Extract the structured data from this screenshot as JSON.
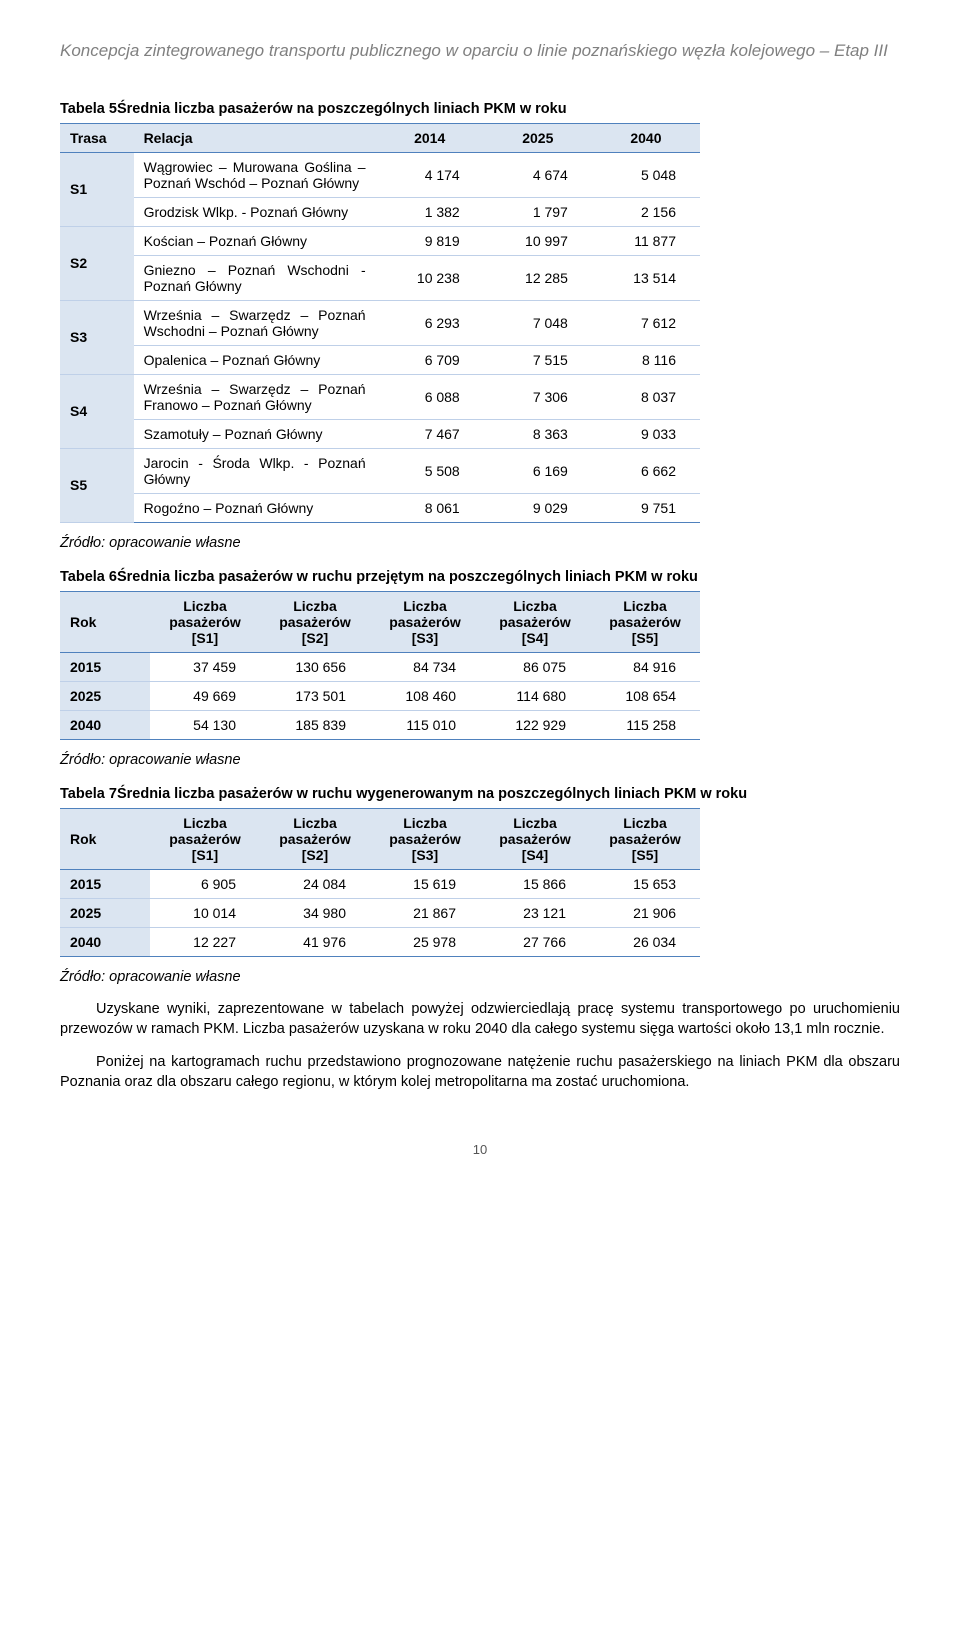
{
  "docTitle": "Koncepcja zintegrowanego transportu publicznego w oparciu o linie poznańskiego węzła kolejowego – Etap III",
  "table5": {
    "caption": "Tabela 5Średnia liczba pasażerów na poszczególnych liniach PKM w roku",
    "head": {
      "c1": "Trasa",
      "c2": "Relacja",
      "c3": "2014",
      "c4": "2025",
      "c5": "2040"
    },
    "groups": [
      {
        "code": "S1",
        "rows": [
          {
            "label": "Wągrowiec – Murowana Goślina – Poznań Wschód – Poznań Główny",
            "v": [
              "4 174",
              "4 674",
              "5 048"
            ]
          },
          {
            "label": "Grodzisk Wlkp. - Poznań Główny",
            "v": [
              "1 382",
              "1 797",
              "2 156"
            ]
          }
        ]
      },
      {
        "code": "S2",
        "rows": [
          {
            "label": "Kościan – Poznań Główny",
            "v": [
              "9 819",
              "10 997",
              "11 877"
            ]
          },
          {
            "label": "Gniezno – Poznań Wschodni - Poznań Główny",
            "v": [
              "10 238",
              "12 285",
              "13 514"
            ]
          }
        ]
      },
      {
        "code": "S3",
        "rows": [
          {
            "label": "Września – Swarzędz – Poznań Wschodni – Poznań Główny",
            "v": [
              "6 293",
              "7 048",
              "7 612"
            ]
          },
          {
            "label": "Opalenica – Poznań Główny",
            "v": [
              "6 709",
              "7 515",
              "8 116"
            ]
          }
        ]
      },
      {
        "code": "S4",
        "rows": [
          {
            "label": "Września – Swarzędz – Poznań Franowo – Poznań Główny",
            "v": [
              "6 088",
              "7 306",
              "8 037"
            ]
          },
          {
            "label": "Szamotuły – Poznań Główny",
            "v": [
              "7 467",
              "8 363",
              "9 033"
            ]
          }
        ]
      },
      {
        "code": "S5",
        "rows": [
          {
            "label": "Jarocin - Środa Wlkp. - Poznań Główny",
            "v": [
              "5 508",
              "6 169",
              "6 662"
            ]
          },
          {
            "label": "Rogoźno – Poznań Główny",
            "v": [
              "8 061",
              "9 029",
              "9 751"
            ]
          }
        ]
      }
    ]
  },
  "source": "Źródło: opracowanie własne",
  "table6": {
    "caption": "Tabela 6Średnia liczba pasażerów  w ruchu przejętym na poszczególnych liniach PKM w roku",
    "head": {
      "c1": "Rok",
      "c2": "Liczba pasażerów [S1]",
      "c3": "Liczba pasażerów [S2]",
      "c4": "Liczba pasażerów [S3]",
      "c5": "Liczba pasażerów [S4]",
      "c6": "Liczba pasażerów [S5]"
    },
    "rows": [
      {
        "y": "2015",
        "v": [
          "37 459",
          "130 656",
          "84 734",
          "86 075",
          "84 916"
        ]
      },
      {
        "y": "2025",
        "v": [
          "49 669",
          "173 501",
          "108 460",
          "114 680",
          "108 654"
        ]
      },
      {
        "y": "2040",
        "v": [
          "54 130",
          "185 839",
          "115 010",
          "122 929",
          "115 258"
        ]
      }
    ]
  },
  "table7": {
    "caption": "Tabela 7Średnia liczba pasażerów  w ruchu wygenerowanym na poszczególnych liniach PKM w roku",
    "head": {
      "c1": "Rok",
      "c2": "Liczba pasażerów [S1]",
      "c3": "Liczba pasażerów [S2]",
      "c4": "Liczba pasażerów [S3]",
      "c5": "Liczba pasażerów [S4]",
      "c6": "Liczba pasażerów [S5]"
    },
    "rows": [
      {
        "y": "2015",
        "v": [
          "6 905",
          "24 084",
          "15 619",
          "15 866",
          "15 653"
        ]
      },
      {
        "y": "2025",
        "v": [
          "10 014",
          "34 980",
          "21 867",
          "23 121",
          "21 906"
        ]
      },
      {
        "y": "2040",
        "v": [
          "12 227",
          "41 976",
          "25 978",
          "27 766",
          "26 034"
        ]
      }
    ]
  },
  "para1": "Uzyskane wyniki, zaprezentowane w tabelach powyżej odzwierciedlają pracę systemu transportowego po uruchomieniu przewozów w ramach PKM. Liczba pasażerów uzyskana w roku 2040 dla całego systemu sięga wartości około 13,1 mln rocznie.",
  "para2": "Poniżej na kartogramach ruchu przedstawiono prognozowane natężenie ruchu pasażerskiego na liniach PKM dla obszaru Poznania oraz dla obszaru całego regionu, w którym kolej metropolitarna ma zostać uruchomiona.",
  "pageNum": "10"
}
